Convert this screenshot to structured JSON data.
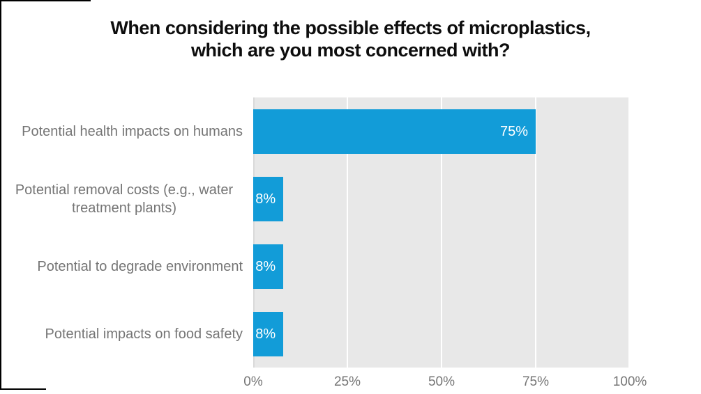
{
  "title": {
    "line1": "When considering the possible effects of microplastics,",
    "line2": "which are you most concerned with?"
  },
  "chart_data": {
    "type": "bar",
    "orientation": "horizontal",
    "title": "When considering the possible effects of microplastics, which are you most concerned with?",
    "categories": [
      "Potential health impacts on humans",
      "Potential removal costs (e.g., water treatment plants)",
      "Potential to degrade environment",
      "Potential impacts on food safety"
    ],
    "values": [
      75,
      8,
      8,
      8
    ],
    "value_labels": [
      "75%",
      "8%",
      "8%",
      "8%"
    ],
    "x_ticks": [
      "0%",
      "25%",
      "50%",
      "75%",
      "100%"
    ],
    "xlim": [
      0,
      100
    ],
    "xlabel": "",
    "ylabel": "",
    "legend": false,
    "grid": "vertical gridlines at 25% intervals",
    "bar_color": "#129cd8",
    "plot_background": "#e8e8e8",
    "value_label_position": "inside-end"
  },
  "colors": {
    "bar": "#129cd8",
    "plot_background": "#e8e8e8",
    "gridline": "#ffffff",
    "axis_line": "#d9d9d9",
    "category_text": "#757575",
    "tick_text": "#757575",
    "value_text": "#ffffff",
    "title_text": "#0d0d0d",
    "frame_border": "#000000"
  }
}
